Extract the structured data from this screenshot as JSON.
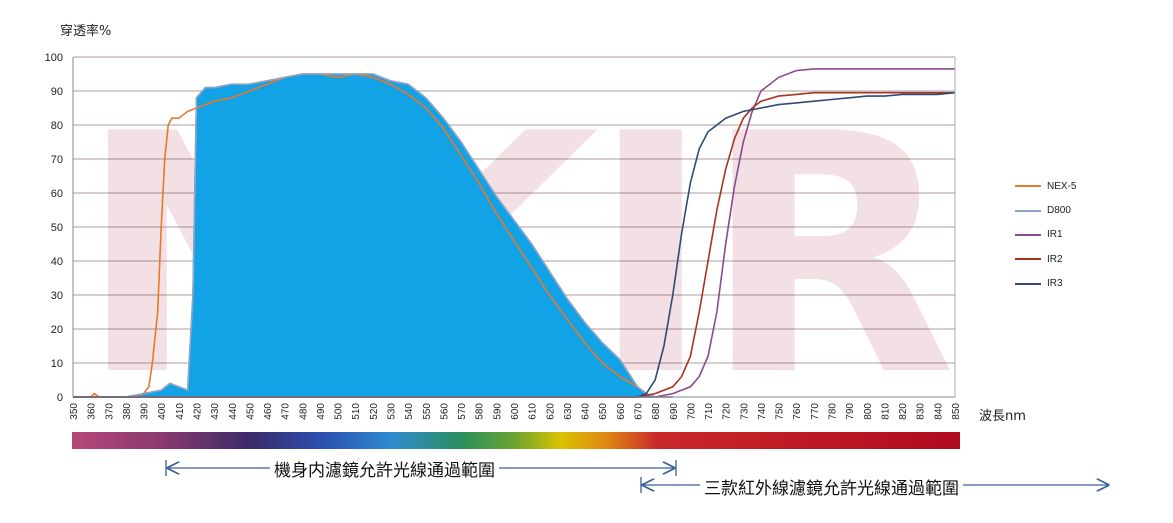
{
  "chart_data": {
    "type": "line",
    "ylabel": "穿透率%",
    "xlabel": "波長nm",
    "watermark": "NKIR",
    "xlim": [
      350,
      850
    ],
    "ylim": [
      0,
      100
    ],
    "yticks": [
      0,
      10,
      20,
      30,
      40,
      50,
      60,
      70,
      80,
      90,
      100
    ],
    "xticks": [
      350,
      360,
      370,
      380,
      390,
      400,
      410,
      420,
      430,
      440,
      450,
      460,
      470,
      480,
      490,
      500,
      510,
      520,
      530,
      540,
      550,
      560,
      570,
      580,
      590,
      600,
      610,
      620,
      630,
      640,
      650,
      660,
      670,
      680,
      690,
      700,
      710,
      720,
      730,
      740,
      750,
      760,
      770,
      780,
      790,
      800,
      810,
      820,
      830,
      840,
      850
    ],
    "grid": "horizontal",
    "legend_position": "right",
    "series": [
      {
        "name": "NEX-5",
        "color": "#e8782a",
        "x": [
          350,
          360,
          362,
          365,
          370,
          375,
          380,
          385,
          390,
          393,
          395,
          398,
          400,
          402,
          404,
          406,
          410,
          415,
          420,
          430,
          440,
          450,
          460,
          470,
          480,
          490,
          500,
          510,
          520,
          530,
          540,
          550,
          560,
          570,
          580,
          590,
          600,
          610,
          620,
          630,
          640,
          650,
          660,
          670,
          675,
          680,
          690
        ],
        "y": [
          0,
          0,
          1,
          0,
          0,
          0,
          0,
          0,
          1,
          3,
          10,
          25,
          50,
          70,
          80,
          82,
          82,
          84,
          85,
          87,
          88,
          90,
          92,
          94,
          95,
          95,
          94,
          95,
          94,
          92,
          89,
          85,
          79,
          71,
          63,
          54,
          46,
          38,
          30,
          23,
          16,
          10,
          6,
          3,
          1,
          0,
          0
        ]
      },
      {
        "name": "D800",
        "color": "#8fa4c8",
        "x": [
          350,
          380,
          390,
          400,
          405,
          410,
          415,
          418,
          420,
          425,
          430,
          440,
          450,
          460,
          470,
          480,
          490,
          500,
          510,
          520,
          530,
          540,
          550,
          560,
          570,
          580,
          590,
          600,
          610,
          620,
          630,
          640,
          650,
          660,
          665,
          670,
          675,
          680,
          690
        ],
        "y": [
          0,
          0,
          1,
          2,
          4,
          3,
          2,
          30,
          88,
          91,
          91,
          92,
          92,
          93,
          94,
          95,
          95,
          95,
          95,
          95,
          93,
          92,
          88,
          82,
          75,
          67,
          59,
          52,
          45,
          37,
          29,
          22,
          16,
          11,
          7,
          3,
          1,
          0,
          0
        ]
      },
      {
        "name": "IR1",
        "color": "#8a4a8c",
        "x": [
          350,
          680,
          690,
          700,
          705,
          710,
          715,
          720,
          725,
          730,
          735,
          740,
          750,
          760,
          770,
          780,
          790,
          800,
          810,
          820,
          830,
          840,
          850
        ],
        "y": [
          0,
          0,
          1,
          3,
          6,
          12,
          25,
          45,
          62,
          75,
          84,
          90,
          94,
          96,
          96.5,
          96.5,
          96.5,
          96.5,
          96.5,
          96.5,
          96.5,
          96.5,
          96.5
        ]
      },
      {
        "name": "IR2",
        "color": "#a8341e",
        "x": [
          350,
          670,
          680,
          690,
          695,
          700,
          705,
          710,
          715,
          720,
          725,
          730,
          735,
          740,
          750,
          760,
          770,
          780,
          790,
          800,
          810,
          820,
          830,
          840,
          850
        ],
        "y": [
          0,
          0,
          1,
          3,
          6,
          12,
          25,
          40,
          55,
          67,
          76,
          82,
          85,
          87,
          88.5,
          89,
          89.5,
          89.5,
          89.5,
          89.5,
          89.5,
          89.5,
          89.5,
          89.5,
          89.5
        ]
      },
      {
        "name": "IR3",
        "color": "#2f4a7a",
        "x": [
          350,
          670,
          675,
          680,
          685,
          690,
          695,
          700,
          705,
          710,
          720,
          730,
          740,
          750,
          760,
          770,
          780,
          790,
          800,
          810,
          820,
          830,
          840,
          850
        ],
        "y": [
          0,
          0,
          1,
          5,
          15,
          30,
          48,
          63,
          73,
          78,
          82,
          84,
          85,
          86,
          86.5,
          87,
          87.5,
          88,
          88.5,
          88.5,
          89,
          89,
          89,
          89.5
        ]
      }
    ],
    "ranges": [
      {
        "label": "機身内濾鏡允許光線通過範圍",
        "from": 400,
        "to": 690
      },
      {
        "label": "三款紅外線濾鏡允許光線通過範圍",
        "from": 685,
        "to": "→"
      }
    ]
  }
}
